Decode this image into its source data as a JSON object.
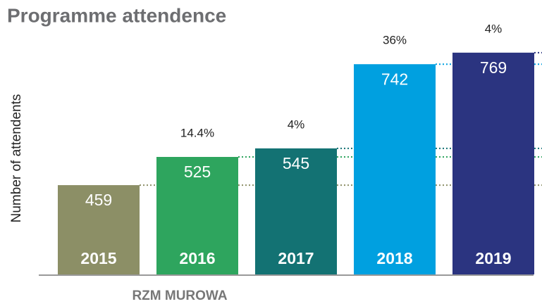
{
  "chart_data": {
    "type": "bar",
    "title": "Programme attendence",
    "y_label": "Number of attendents",
    "x_label": "RZM MUROWA",
    "categories": [
      "2015",
      "2016",
      "2017",
      "2018",
      "2019"
    ],
    "values": [
      459,
      525,
      545,
      742,
      769
    ],
    "changes": [
      null,
      "14.4%",
      "4%",
      "36%",
      "4%"
    ],
    "colors": [
      "#8c8f66",
      "#2ea55e",
      "#137273",
      "#00a0e0",
      "#2b3480"
    ],
    "ylim": [
      250,
      800
    ]
  }
}
